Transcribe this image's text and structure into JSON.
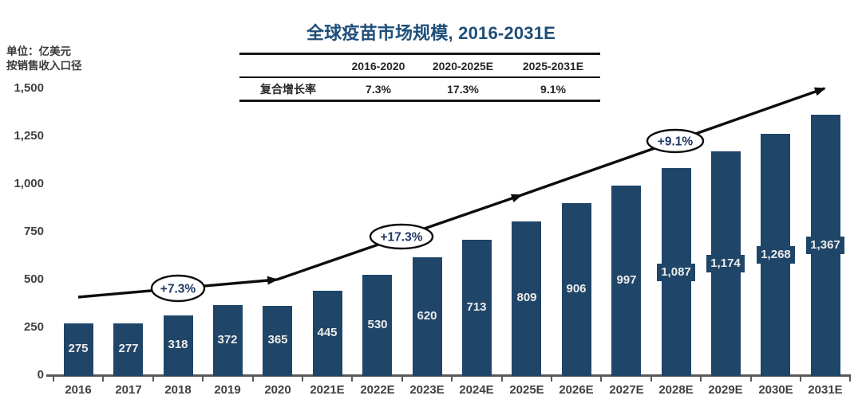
{
  "title": "全球疫苗市场规模, 2016-2031E",
  "unit_label": {
    "line1": "单位：亿美元",
    "line2": "按销售收入口径"
  },
  "cagr_table": {
    "headers": [
      "2016-2020",
      "2020-2025E",
      "2025-2031E"
    ],
    "row_label": "复合增长率",
    "values": [
      "7.3%",
      "17.3%",
      "9.1%"
    ]
  },
  "chart_data": {
    "type": "bar",
    "title": "全球疫苗市场规模, 2016-2031E",
    "unit": "亿美元",
    "basis": "按销售收入口径",
    "categories": [
      "2016",
      "2017",
      "2018",
      "2019",
      "2020",
      "2021E",
      "2022E",
      "2023E",
      "2024E",
      "2025E",
      "2026E",
      "2027E",
      "2028E",
      "2029E",
      "2030E",
      "2031E"
    ],
    "values": [
      275,
      277,
      318,
      372,
      365,
      445,
      530,
      620,
      713,
      809,
      906,
      997,
      1087,
      1174,
      1268,
      1367
    ],
    "value_labels": [
      "275",
      "277",
      "318",
      "372",
      "365",
      "445",
      "530",
      "620",
      "713",
      "809",
      "906",
      "997",
      "1,087",
      "1,174",
      "1,268",
      "1,367"
    ],
    "ylim": [
      0,
      1500
    ],
    "y_ticks": [
      0,
      250,
      500,
      750,
      1000,
      1250,
      1500
    ],
    "y_tick_labels": [
      "0",
      "250",
      "500",
      "750",
      "1,000",
      "1,250",
      "1,500"
    ],
    "grid": false,
    "legend": null,
    "annotations": [
      {
        "label": "+7.3%"
      },
      {
        "label": "+17.3%"
      },
      {
        "label": "+9.1%"
      }
    ]
  },
  "colors": {
    "bar": "#1F4568",
    "title": "#1F4E79",
    "axis": "#595959",
    "axis_label": "#3f3f3f",
    "bar_value_text": "#ECECEC",
    "arrow": "#0d0d0d",
    "annotation_text": "#203864",
    "annotation_fill": "#ffffff"
  }
}
